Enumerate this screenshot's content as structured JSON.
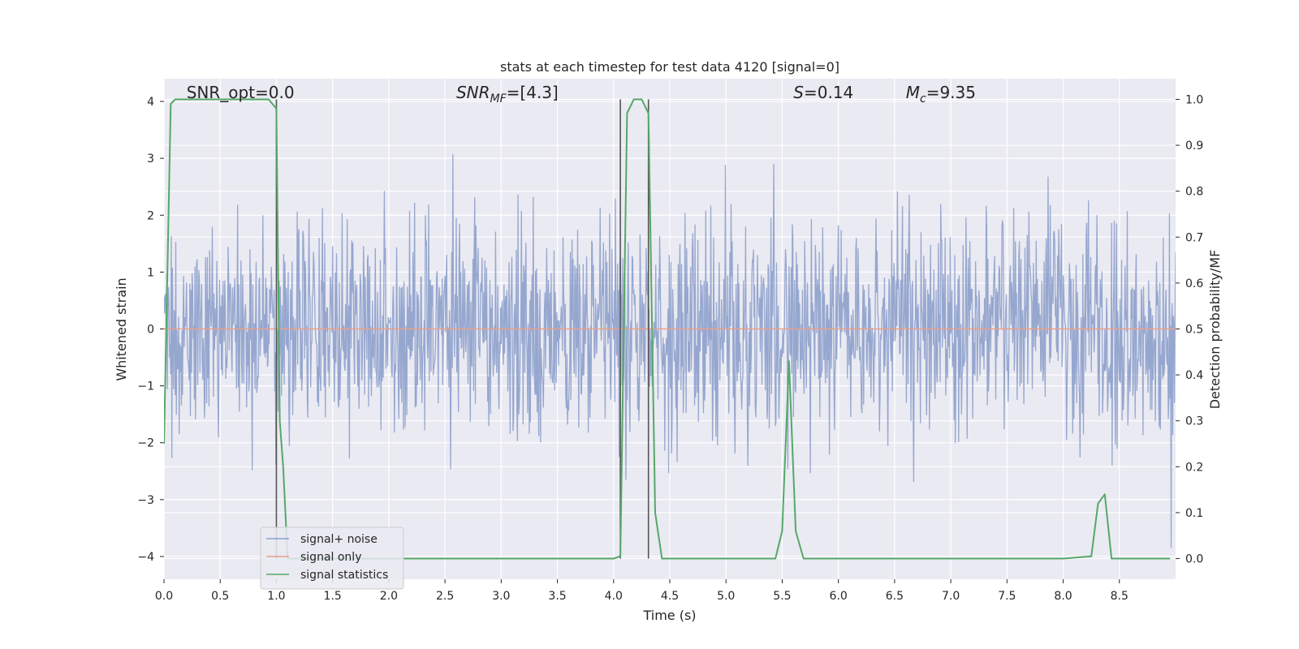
{
  "chart_data": {
    "type": "line",
    "title": "stats at each timestep for test data 4120 [signal=0]",
    "xlabel": "Time (s)",
    "ylabel": "Whitened strain",
    "y2label": "Detection probability/MF",
    "xlim": [
      0.0,
      9.0
    ],
    "ylim": [
      -4.4,
      4.4
    ],
    "y2lim": [
      -0.045,
      1.045
    ],
    "xticks": [
      "0.0",
      "0.5",
      "1.0",
      "1.5",
      "2.0",
      "2.5",
      "3.0",
      "3.5",
      "4.0",
      "4.5",
      "5.0",
      "5.5",
      "6.0",
      "6.5",
      "7.0",
      "7.5",
      "8.0",
      "8.5"
    ],
    "yticks": [
      "4",
      "3",
      "2",
      "1",
      "0",
      "−1",
      "−2",
      "−3",
      "−4"
    ],
    "y2ticks": [
      "1.0",
      "0.9",
      "0.8",
      "0.7",
      "0.6",
      "0.5",
      "0.4",
      "0.3",
      "0.2",
      "0.1",
      "0.0"
    ],
    "grid": true,
    "legend_position": "lower-left",
    "annotations": [
      {
        "text": "SNR_opt=0.0",
        "x": 0.2
      },
      {
        "text": "SNR_MF=[4.3]",
        "x": 2.6
      },
      {
        "text": "S=0.14",
        "x": 5.6
      },
      {
        "text": "M_c=9.35",
        "x": 6.6
      }
    ],
    "vertical_markers_x": [
      1.0,
      4.06,
      4.31
    ],
    "series": [
      {
        "name": "signal+ noise",
        "axis": "left",
        "color": "#8da0cb",
        "description_values": "dense noise, roughly ±2 with spikes to about ±4",
        "sample_rate_hz": 200,
        "amplitude_range": [
          -3.85,
          4.0
        ]
      },
      {
        "name": "signal only",
        "axis": "left",
        "color": "#e8a08a",
        "x": [
          0.0,
          9.0
        ],
        "y": [
          0.0,
          0.0
        ]
      },
      {
        "name": "signal statistics",
        "axis": "right",
        "color": "#55a868",
        "x": [
          0.0,
          0.06,
          0.1,
          0.2,
          0.3,
          0.5,
          0.7,
          0.93,
          1.0,
          1.03,
          1.06,
          1.1,
          1.5,
          2.0,
          2.5,
          3.0,
          3.5,
          4.0,
          4.06,
          4.12,
          4.18,
          4.25,
          4.31,
          4.37,
          4.43,
          4.5,
          5.0,
          5.44,
          5.5,
          5.56,
          5.62,
          5.69,
          5.8,
          6.0,
          7.0,
          8.0,
          8.25,
          8.31,
          8.37,
          8.43,
          8.5,
          8.95
        ],
        "y": [
          0.25,
          0.99,
          1.0,
          1.0,
          1.0,
          1.0,
          1.0,
          1.0,
          0.98,
          0.3,
          0.2,
          0.0,
          0.0,
          0.0,
          0.0,
          0.0,
          0.0,
          0.0,
          0.005,
          0.97,
          1.0,
          1.0,
          0.97,
          0.1,
          0.0,
          0.0,
          0.0,
          0.0,
          0.06,
          0.43,
          0.06,
          0.0,
          0.0,
          0.0,
          0.0,
          0.0,
          0.005,
          0.12,
          0.14,
          0.0,
          0.0,
          0.0
        ]
      }
    ]
  }
}
